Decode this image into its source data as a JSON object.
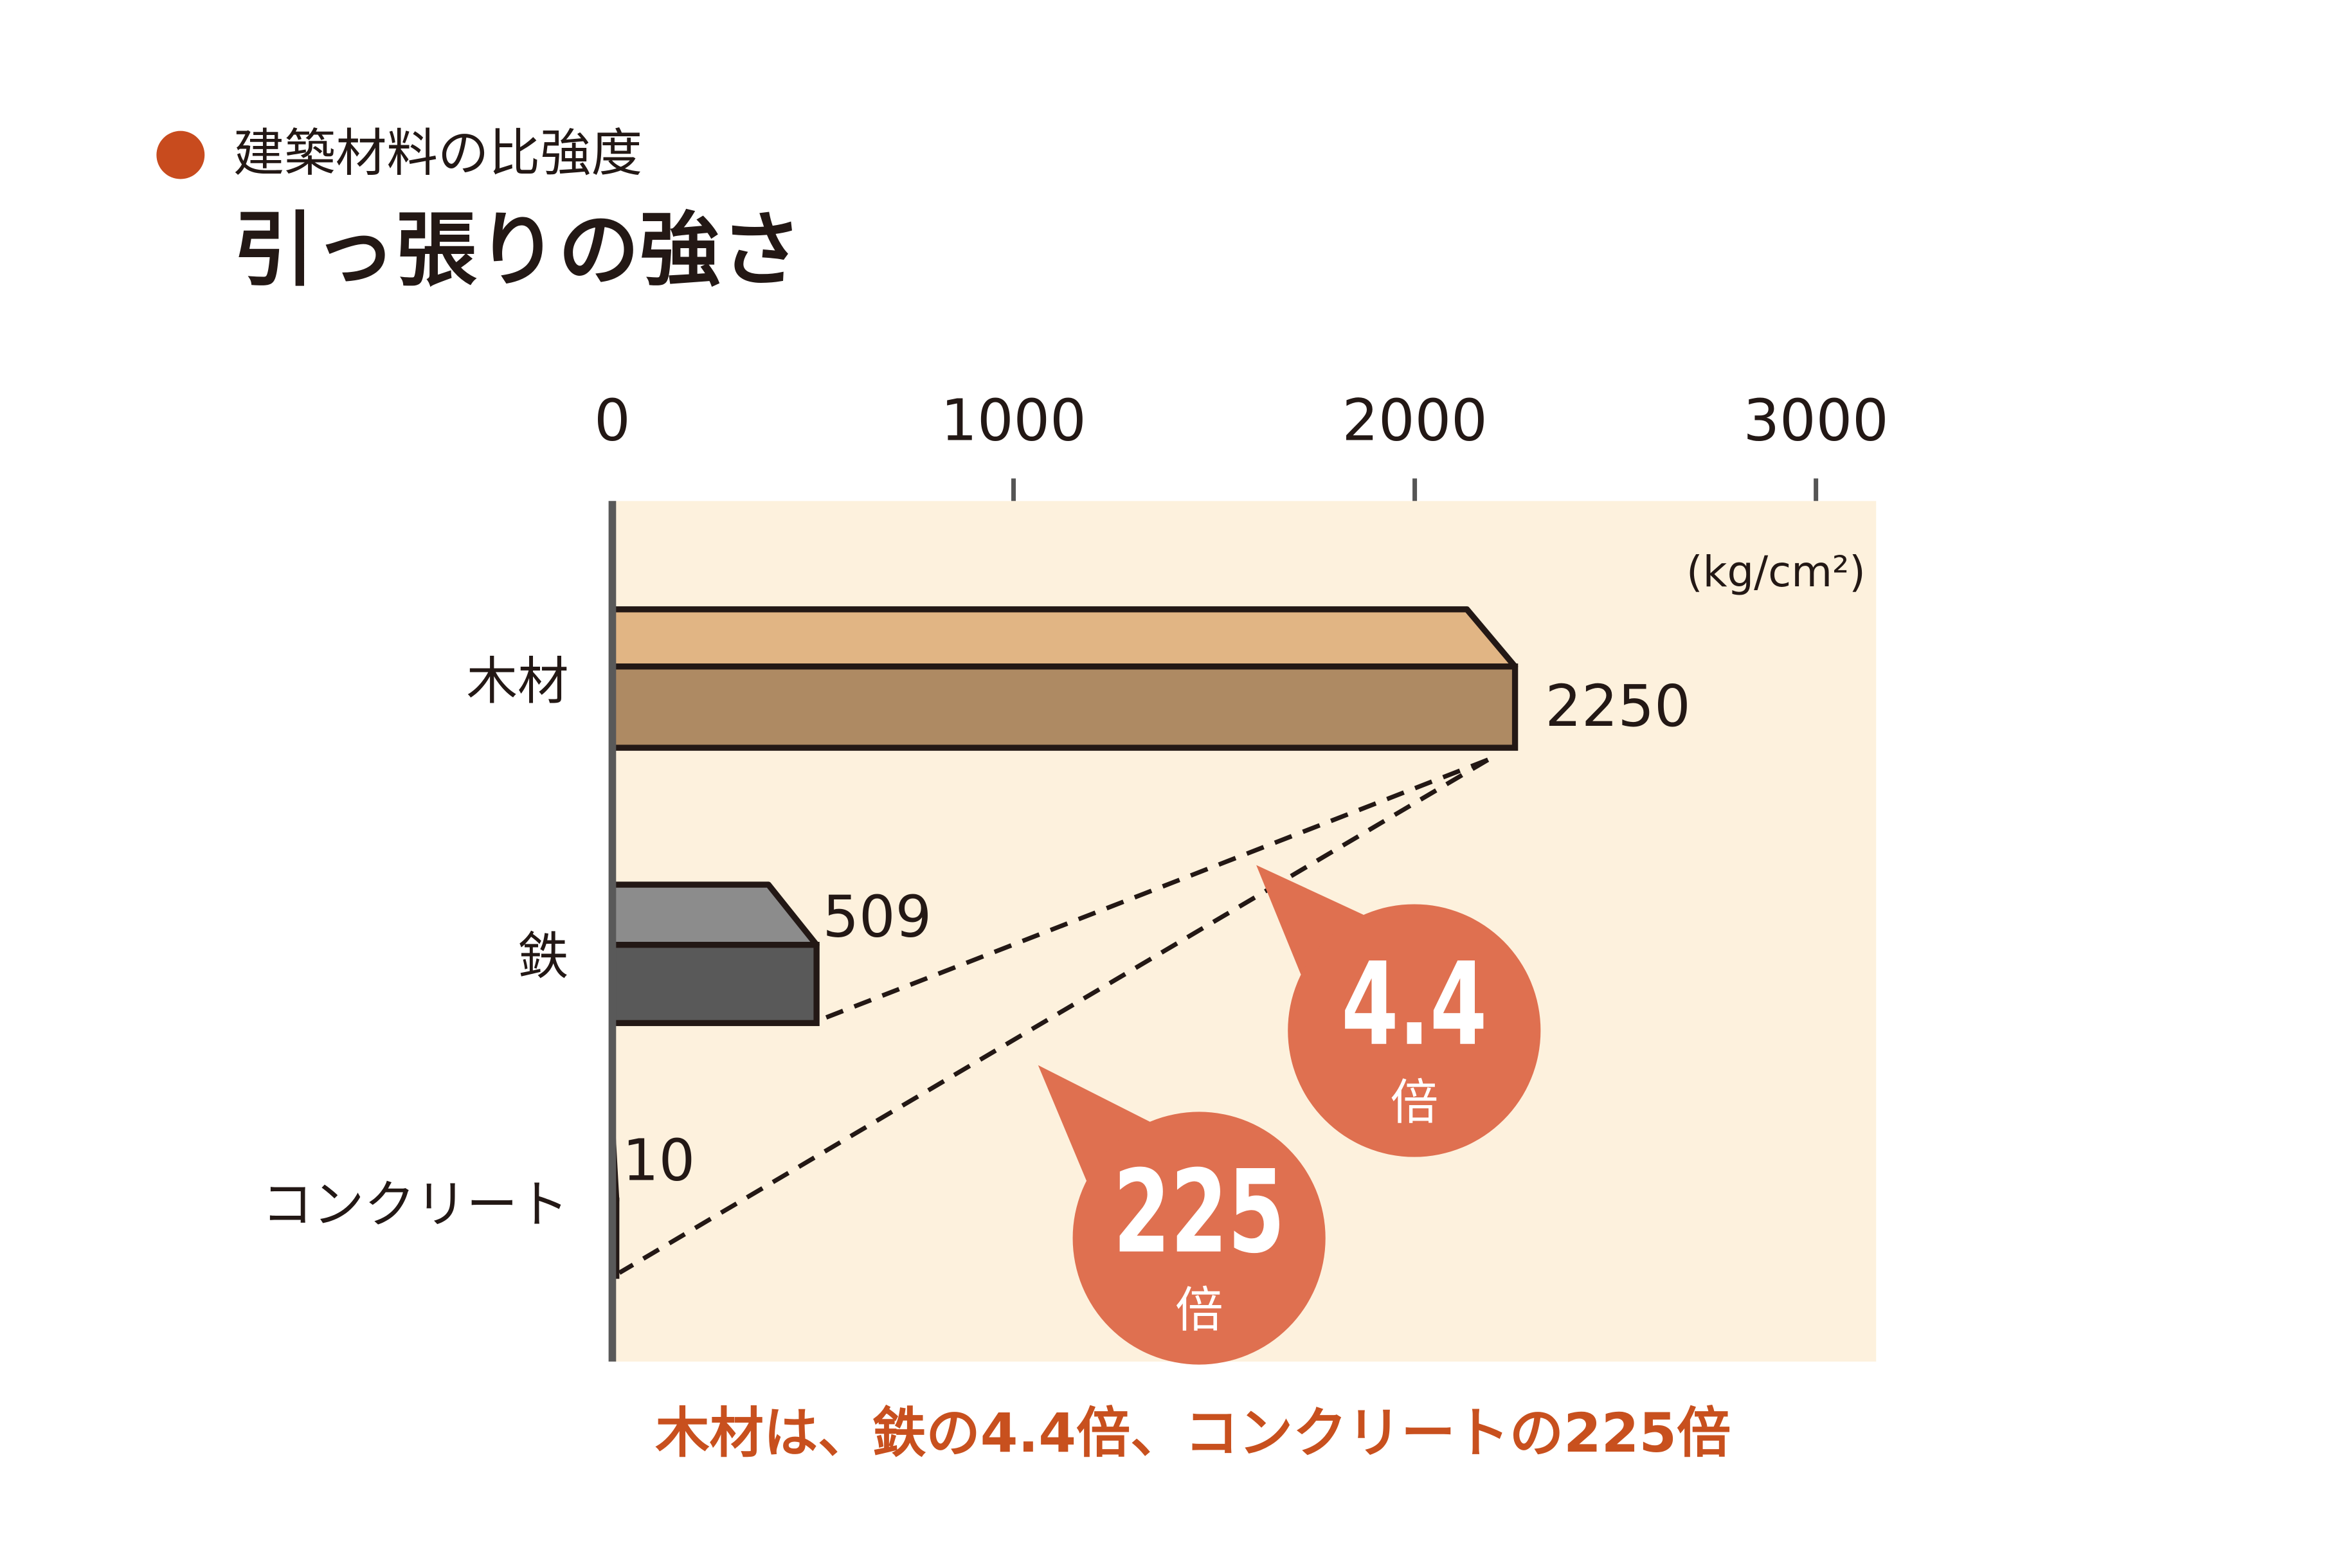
{
  "chart_data": {
    "type": "hbar",
    "title": "建築材料の比強度",
    "subtitle": "引っ張りの強さ",
    "unit": "(kg/cm²)",
    "categories": [
      "木材",
      "鉄",
      "コンクリート"
    ],
    "values": [
      2250,
      509,
      10
    ],
    "colors": [
      "#ae8a63",
      "#595959",
      "#a9a9a9"
    ],
    "top_colors": [
      "#e1b584",
      "#8c8c8c",
      "#d2d2d2"
    ],
    "xlim": [
      0,
      3150
    ],
    "xticks": [
      0,
      1000,
      2000,
      3000
    ],
    "callouts": [
      {
        "value": "4.4",
        "unit": "倍"
      },
      {
        "value": "225",
        "unit": "倍"
      }
    ],
    "footnote": "木材は、鉄の4.4倍、コンクリートの225倍"
  }
}
